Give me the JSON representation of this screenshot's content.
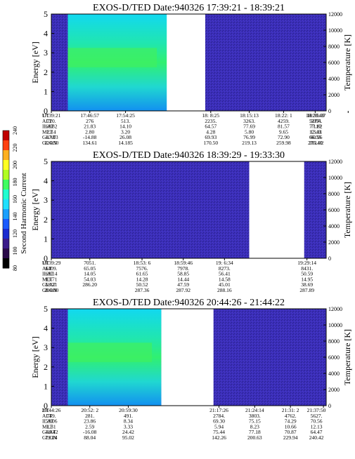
{
  "colors": {
    "background": "#ffffff",
    "colorbar": [
      "#000000",
      "#2a0a4a",
      "#3a1a8a",
      "#1a2ad0",
      "#1a5aff",
      "#1aa0ff",
      "#20e0ff",
      "#20ffd0",
      "#40ff60",
      "#b0ff20",
      "#ffff20",
      "#ffb020",
      "#ff4010",
      "#c00000"
    ]
  },
  "colorbar": {
    "label": "Second Harmonic Current",
    "ticks": [
      "80",
      "100",
      "120",
      "140",
      "160",
      "180",
      "200",
      "220",
      "240"
    ]
  },
  "panels": [
    {
      "title": "EXOS-D/TED   Date:940326   17:39:21 - 18:39:21",
      "ylabel": "Energy [eV]",
      "y2label": "Temperature [K]",
      "yticks": [
        "0",
        "1",
        "2",
        "3",
        "4",
        "5"
      ],
      "y2ticks": [
        "0",
        "2000",
        "4000",
        "6000",
        "8000",
        "10000",
        "12000"
      ],
      "segments": [
        [
          0,
          0.4
        ],
        [
          0.56,
          1.0
        ]
      ],
      "hot": [
        [
          0.06,
          0.42
        ]
      ],
      "row_labels": [
        "UT",
        "ALT",
        "ILAT",
        "MLT",
        "GLAT",
        "GLON"
      ],
      "columns": [
        {
          "x": 0.0,
          "values": [
            "17:39:21",
            "720.",
            "60.82",
            "2.14",
            "-47.03",
            "124.50"
          ]
        },
        {
          "x": 0.14,
          "values": [
            "17:46:57",
            "276",
            "21.83",
            "2.80",
            "-14.88",
            "134.61"
          ]
        },
        {
          "x": 0.27,
          "values": [
            "17:54:25",
            "513.",
            "14.10",
            "3.20",
            "26.08",
            "14.185"
          ]
        },
        {
          "x": 0.58,
          "values": [
            "18: 8:25",
            "2235.",
            "64.57",
            "4.28",
            "69.93",
            "170.50"
          ]
        },
        {
          "x": 0.72,
          "values": [
            "18:15:13",
            "3263.",
            "77.69",
            "5.80",
            "76.99",
            "219.13"
          ]
        },
        {
          "x": 0.845,
          "values": [
            "18:22: 1",
            "4259.",
            "81.57",
            "9.65",
            "72.90",
            "259.98"
          ]
        },
        {
          "x": 0.96,
          "values": [
            "18:28:49",
            "5177.",
            "77.10",
            "12.43",
            "66.55",
            "275.40"
          ]
        },
        {
          "x": 1.08,
          "values": [
            "18:35:37",
            "5994.",
            "71.82",
            "13.41",
            "60.96",
            "281.92"
          ]
        }
      ]
    },
    {
      "title": "EXOS-D/TED   Date:940326   18:39:29 - 19:33:30",
      "ylabel": "Energy [eV]",
      "y2label": "Temperature [K]",
      "yticks": [
        "0",
        "1",
        "2",
        "3",
        "4",
        "5"
      ],
      "y2ticks": [
        "0",
        "2000",
        "4000",
        "6000",
        "8000",
        "10000",
        "12000"
      ],
      "segments": [
        [
          0,
          0.72
        ],
        [
          0.92,
          1.0
        ]
      ],
      "hot": [],
      "row_labels": [
        "UT",
        "ALT",
        "ILAT",
        "MLT",
        "GLAT",
        "GLON"
      ],
      "columns": [
        {
          "x": 0.0,
          "values": [
            "18:39:29",
            "6409.",
            "69.14",
            "13.71",
            "58.21",
            "284.00"
          ]
        },
        {
          "x": 0.14,
          "values": [
            "7051.",
            "65.05",
            "14.05",
            "54.03",
            "286.20",
            ""
          ]
        },
        {
          "x": 0.33,
          "values": [
            "18:53: 6",
            "7576.",
            "61.65",
            "14.28",
            "50.52",
            "287.36"
          ]
        },
        {
          "x": 0.48,
          "values": [
            "18:59:46",
            "7978.",
            "58.85",
            "14.44",
            "47.59",
            "287.92"
          ]
        },
        {
          "x": 0.63,
          "values": [
            "19: 6:34",
            "8273.",
            "56.41",
            "14.58",
            "45.01",
            "288.16"
          ]
        },
        {
          "x": 0.93,
          "values": [
            "19:29:14",
            "8431.",
            "50.59",
            "14.95",
            "38.69",
            "287.89"
          ]
        }
      ]
    },
    {
      "title": "EXOS-D/TED   Date:940326   20:44:26 - 21:44:22",
      "ylabel": "Energy [eV]",
      "y2label": "Temperature [K]",
      "yticks": [
        "0",
        "1",
        "2",
        "3",
        "4",
        "5"
      ],
      "y2ticks": [
        "0",
        "2000",
        "4000",
        "6000",
        "8000",
        "10000",
        "12000"
      ],
      "segments": [
        [
          0,
          0.4
        ],
        [
          0.59,
          1.0
        ]
      ],
      "hot": [
        [
          0.06,
          0.4
        ]
      ],
      "row_labels": [
        "UT",
        "ALT",
        "ILAT",
        "MLT",
        "GLAT",
        "GLON"
      ],
      "columns": [
        {
          "x": 0.0,
          "values": [
            "20:44:26",
            "749.",
            "59.06",
            "1.31",
            "-48.42",
            "79.24"
          ]
        },
        {
          "x": 0.14,
          "values": [
            "20:52: 2",
            "281.",
            "23.86",
            "2.59",
            "-16.08",
            "88.04"
          ]
        },
        {
          "x": 0.28,
          "values": [
            "20:59:30",
            "491.",
            "8.34",
            "3.33",
            "24.42",
            "95.02"
          ]
        },
        {
          "x": 0.61,
          "values": [
            "21:17:26",
            "2784.",
            "69.30",
            "5.94",
            "75.44",
            "142.26"
          ]
        },
        {
          "x": 0.74,
          "values": [
            "21:24:14",
            "3803.",
            "75.15",
            "8.23",
            "77.18",
            "200.63"
          ]
        },
        {
          "x": 0.87,
          "values": [
            "21:31: 2",
            "4762.",
            "74.29",
            "10.66",
            "70.87",
            "229.94"
          ]
        },
        {
          "x": 0.99,
          "values": [
            "21:37:50",
            "5627.",
            "70.56",
            "12.13",
            "64.47",
            "240.42"
          ]
        }
      ]
    }
  ],
  "chart_data": [
    {
      "type": "heatmap",
      "title": "EXOS-D/TED   Date:940326   17:39:21 - 18:39:21",
      "xlabel": "",
      "ylabel": "Energy [eV]",
      "y2label": "Temperature [K]",
      "ylim": [
        0,
        5
      ],
      "y2lim": [
        0,
        12000
      ]
    },
    {
      "type": "heatmap",
      "title": "EXOS-D/TED   Date:940326   18:39:29 - 19:33:30",
      "xlabel": "",
      "ylabel": "Energy [eV]",
      "y2label": "Temperature [K]",
      "ylim": [
        0,
        5
      ],
      "y2lim": [
        0,
        12000
      ]
    },
    {
      "type": "heatmap",
      "title": "EXOS-D/TED   Date:940326   20:44:26 - 21:44:22",
      "xlabel": "",
      "ylabel": "Energy [eV]",
      "y2label": "Temperature [K]",
      "ylim": [
        0,
        5
      ],
      "y2lim": [
        0,
        12000
      ]
    }
  ]
}
